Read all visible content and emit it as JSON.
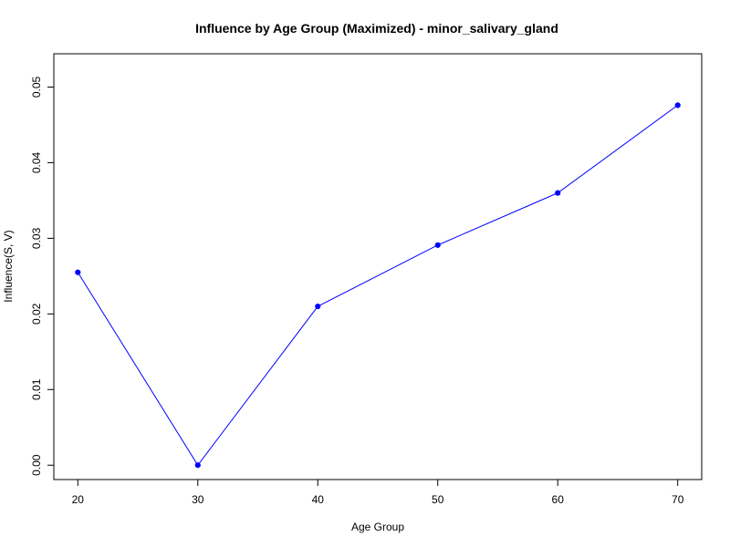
{
  "chart_data": {
    "type": "line",
    "title": "Influence by Age Group (Maximized) - minor_salivary_gland",
    "xlabel": "Age Group",
    "ylabel": "Influence(S, V)",
    "x": [
      20,
      30,
      40,
      50,
      60,
      70
    ],
    "series": [
      {
        "values": [
          0.0255,
          0.0,
          0.021,
          0.0291,
          0.036,
          0.0476
        ],
        "color": "#0000ff",
        "marker": "filled-circle"
      }
    ],
    "xticks": [
      20,
      30,
      40,
      50,
      60,
      70
    ],
    "xtick_labels": [
      "20",
      "30",
      "40",
      "50",
      "60",
      "70"
    ],
    "yticks": [
      0.0,
      0.01,
      0.02,
      0.03,
      0.04,
      0.05
    ],
    "ytick_labels": [
      "0.00",
      "0.01",
      "0.02",
      "0.03",
      "0.04",
      "0.05"
    ],
    "xlim": [
      18,
      72
    ],
    "ylim": [
      -0.0019,
      0.0544
    ],
    "grid": false,
    "legend": "none",
    "colors": {
      "line": "#0000ff",
      "axis": "#000000",
      "background": "#ffffff"
    }
  }
}
